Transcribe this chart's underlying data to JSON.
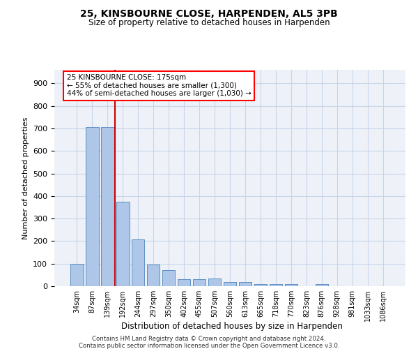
{
  "title": "25, KINSBOURNE CLOSE, HARPENDEN, AL5 3PB",
  "subtitle": "Size of property relative to detached houses in Harpenden",
  "xlabel": "Distribution of detached houses by size in Harpenden",
  "ylabel": "Number of detached properties",
  "categories": [
    "34sqm",
    "87sqm",
    "139sqm",
    "192sqm",
    "244sqm",
    "297sqm",
    "350sqm",
    "402sqm",
    "455sqm",
    "507sqm",
    "560sqm",
    "613sqm",
    "665sqm",
    "718sqm",
    "770sqm",
    "823sqm",
    "876sqm",
    "928sqm",
    "981sqm",
    "1033sqm",
    "1086sqm"
  ],
  "values": [
    100,
    707,
    707,
    375,
    207,
    95,
    72,
    30,
    30,
    35,
    20,
    20,
    10,
    10,
    10,
    0,
    10,
    0,
    0,
    0,
    0
  ],
  "bar_color": "#aec6e8",
  "bar_edge_color": "#5a8fc2",
  "red_line_x": 2.5,
  "annotation_text_line1": "25 KINSBOURNE CLOSE: 175sqm",
  "annotation_text_line2": "← 55% of detached houses are smaller (1,300)",
  "annotation_text_line3": "44% of semi-detached houses are larger (1,030) →",
  "ylim": [
    0,
    960
  ],
  "yticks": [
    0,
    100,
    200,
    300,
    400,
    500,
    600,
    700,
    800,
    900
  ],
  "grid_color": "#c8d4e8",
  "background_color": "#eef2f8",
  "red_line_color": "#cc0000",
  "footnote_line1": "Contains HM Land Registry data © Crown copyright and database right 2024.",
  "footnote_line2": "Contains public sector information licensed under the Open Government Licence v3.0."
}
